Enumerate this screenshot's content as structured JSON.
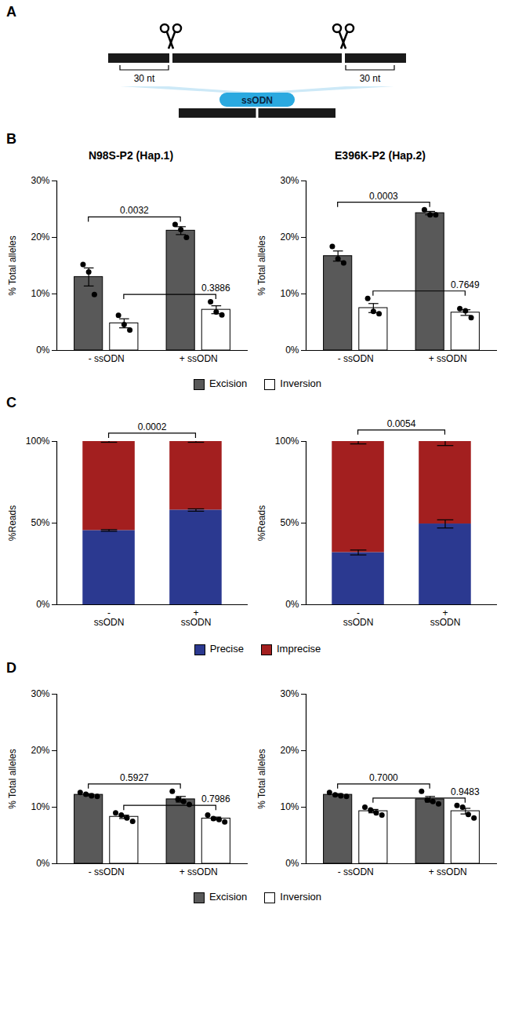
{
  "diagram": {
    "panel": "A",
    "segment_labels": [
      "30 nt",
      "30 nt"
    ],
    "donor": "ssODN"
  },
  "chart_data": [
    {
      "panel": "B",
      "type": "bar",
      "title": "N98S-P2 (Hap.1)",
      "ylabel": "% Total alleles",
      "categories": [
        "- ssODN",
        "+ ssODN"
      ],
      "series": [
        {
          "name": "Excision",
          "color": "#595959",
          "values": [
            13.0,
            21.2
          ],
          "errors": [
            1.6,
            0.7
          ],
          "points": [
            [
              15.2,
              13.9,
              9.9
            ],
            [
              22.3,
              21.4,
              20.0
            ]
          ]
        },
        {
          "name": "Inversion",
          "color": "#ffffff",
          "values": [
            4.8,
            7.2
          ],
          "errors": [
            0.8,
            0.7
          ],
          "points": [
            [
              6.2,
              4.6,
              3.6
            ],
            [
              8.6,
              6.8,
              6.3
            ]
          ]
        }
      ],
      "ylim": [
        0,
        30
      ],
      "yticks": [
        {
          "value": 0,
          "label": "0%"
        },
        {
          "value": 10,
          "label": "10%"
        },
        {
          "value": 20,
          "label": "20%"
        },
        {
          "value": 30,
          "label": "30%"
        }
      ],
      "annotations": [
        {
          "series": "Excision",
          "value": 0.0032,
          "label": "0.0032"
        },
        {
          "series": "Inversion",
          "value": 0.3886,
          "label": "0.3886"
        }
      ],
      "legend": "bottom"
    },
    {
      "type": "bar",
      "title": "E396K-P2 (Hap.2)",
      "ylabel": "% Total alleles",
      "categories": [
        "- ssODN",
        "+ ssODN"
      ],
      "series": [
        {
          "name": "Excision",
          "color": "#595959",
          "values": [
            16.7,
            24.3
          ],
          "errors": [
            0.9,
            0.3
          ],
          "points": [
            [
              18.4,
              16.2,
              15.5
            ],
            [
              24.9,
              24.0,
              24.0
            ]
          ]
        },
        {
          "name": "Inversion",
          "color": "#ffffff",
          "values": [
            7.5,
            6.7
          ],
          "errors": [
            0.8,
            0.5
          ],
          "points": [
            [
              9.2,
              6.9,
              6.5
            ],
            [
              7.4,
              7.0,
              5.8
            ]
          ]
        }
      ],
      "ylim": [
        0,
        30
      ],
      "yticks": [
        {
          "value": 0,
          "label": "0%"
        },
        {
          "value": 10,
          "label": "10%"
        },
        {
          "value": 20,
          "label": "20%"
        },
        {
          "value": 30,
          "label": "30%"
        }
      ],
      "annotations": [
        {
          "series": "Excision",
          "value": 0.0003,
          "label": "0.0003"
        },
        {
          "series": "Inversion",
          "value": 0.7649,
          "label": "0.7649"
        }
      ]
    },
    {
      "panel": "C",
      "type": "bar",
      "stacked": true,
      "ylabel": "%Reads",
      "categories": [
        "-\nssODN",
        "+\nssODN"
      ],
      "series": [
        {
          "name": "Precise",
          "color": "#2b3990",
          "values": [
            45.5,
            58.0
          ],
          "errors": [
            0.5,
            0.7
          ]
        },
        {
          "name": "Imprecise",
          "color": "#a31f1f",
          "values": [
            54.5,
            42.0
          ],
          "errors": [
            0.5,
            0.5
          ]
        }
      ],
      "ylim": [
        0,
        100
      ],
      "yticks": [
        {
          "value": 0,
          "label": "0%"
        },
        {
          "value": 50,
          "label": "50%"
        },
        {
          "value": 100,
          "label": "100%"
        }
      ],
      "annotations": [
        {
          "value": 0.0002,
          "label": "0.0002"
        }
      ],
      "legend": "bottom"
    },
    {
      "type": "bar",
      "stacked": true,
      "ylabel": "%Reads",
      "categories": [
        "-\nssODN",
        "+\nssODN"
      ],
      "series": [
        {
          "name": "Precise",
          "color": "#2b3990",
          "values": [
            32.0,
            49.5
          ],
          "errors": [
            1.5,
            2.5
          ]
        },
        {
          "name": "Imprecise",
          "color": "#a31f1f",
          "values": [
            68.0,
            50.5
          ],
          "errors": [
            1.5,
            2.5
          ]
        }
      ],
      "ylim": [
        0,
        100
      ],
      "yticks": [
        {
          "value": 0,
          "label": "0%"
        },
        {
          "value": 50,
          "label": "50%"
        },
        {
          "value": 100,
          "label": "100%"
        }
      ],
      "annotations": [
        {
          "value": 0.0054,
          "label": "0.0054"
        }
      ]
    },
    {
      "panel": "D",
      "type": "bar",
      "ylabel": "% Total alleles",
      "categories": [
        "- ssODN",
        "+ ssODN"
      ],
      "series": [
        {
          "name": "Excision",
          "color": "#595959",
          "values": [
            12.2,
            11.4
          ],
          "errors": [
            0.2,
            0.5
          ],
          "points": [
            [
              12.6,
              12.3,
              12.0,
              11.9
            ],
            [
              12.8,
              11.4,
              11.0,
              10.5
            ]
          ]
        },
        {
          "name": "Inversion",
          "color": "#ffffff",
          "values": [
            8.3,
            8.0
          ],
          "errors": [
            0.3,
            0.25
          ],
          "points": [
            [
              9.0,
              8.6,
              8.1,
              7.5
            ],
            [
              8.6,
              8.0,
              7.8,
              7.4
            ]
          ]
        }
      ],
      "ylim": [
        0,
        30
      ],
      "yticks": [
        {
          "value": 0,
          "label": "0%"
        },
        {
          "value": 10,
          "label": "10%"
        },
        {
          "value": 20,
          "label": "20%"
        },
        {
          "value": 30,
          "label": "30%"
        }
      ],
      "annotations": [
        {
          "series": "Excision",
          "value": 0.5927,
          "label": "0.5927"
        },
        {
          "series": "Inversion",
          "value": 0.7986,
          "label": "0.7986"
        }
      ],
      "legend": "bottom"
    },
    {
      "type": "bar",
      "ylabel": "% Total alleles",
      "categories": [
        "- ssODN",
        "+ ssODN"
      ],
      "series": [
        {
          "name": "Excision",
          "color": "#595959",
          "values": [
            12.2,
            11.4
          ],
          "errors": [
            0.2,
            0.5
          ],
          "points": [
            [
              12.6,
              12.2,
              12.0,
              11.9
            ],
            [
              12.8,
              11.3,
              11.0,
              10.6
            ]
          ]
        },
        {
          "name": "Inversion",
          "color": "#ffffff",
          "values": [
            9.3,
            9.3
          ],
          "errors": [
            0.3,
            0.5
          ],
          "points": [
            [
              10.0,
              9.5,
              9.0,
              8.6
            ],
            [
              10.3,
              10.0,
              8.7,
              8.1
            ]
          ]
        }
      ],
      "ylim": [
        0,
        30
      ],
      "yticks": [
        {
          "value": 0,
          "label": "0%"
        },
        {
          "value": 10,
          "label": "10%"
        },
        {
          "value": 20,
          "label": "20%"
        },
        {
          "value": 30,
          "label": "30%"
        }
      ],
      "annotations": [
        {
          "series": "Excision",
          "value": 0.7,
          "label": "0.7000"
        },
        {
          "series": "Inversion",
          "value": 0.9483,
          "label": "0.9483"
        }
      ]
    }
  ]
}
